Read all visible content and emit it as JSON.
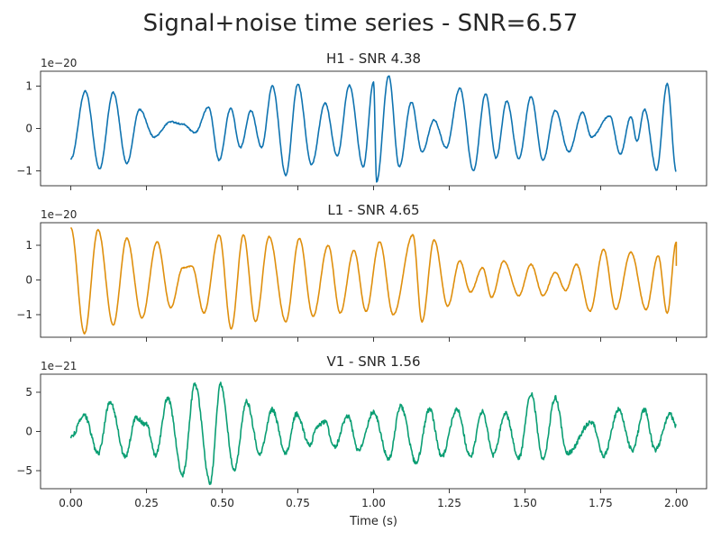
{
  "figure": {
    "title": "Signal+noise time series - SNR=6.57"
  },
  "colors": {
    "H1": "#0f73b0",
    "L1": "#df8f0d",
    "V1": "#0a9e73"
  },
  "chart_data": [
    {
      "type": "line",
      "title": "H1 - SNR 4.38",
      "detector": "H1",
      "color": "#0f73b0",
      "offset_label": "1e−20",
      "xlabel": "",
      "xlim": [
        -0.1,
        2.1
      ],
      "ylim": [
        -1.35,
        1.35
      ],
      "x_ticks": [
        0,
        0.25,
        0.5,
        0.75,
        1.0,
        1.25,
        1.5,
        1.75,
        2.0
      ],
      "x_tick_labels": [
        "",
        "",
        "",
        "",
        "",
        "",
        "",
        "",
        ""
      ],
      "y_ticks": [
        -1,
        0,
        1
      ],
      "y_tick_labels": [
        "−1",
        "0",
        "1"
      ],
      "extrema": [
        [
          0.0,
          -0.72
        ],
        [
          0.048,
          0.88
        ],
        [
          0.095,
          -0.95
        ],
        [
          0.14,
          0.85
        ],
        [
          0.185,
          -0.82
        ],
        [
          0.227,
          0.45
        ],
        [
          0.275,
          -0.2
        ],
        [
          0.33,
          0.16
        ],
        [
          0.37,
          0.1
        ],
        [
          0.41,
          -0.1
        ],
        [
          0.455,
          0.5
        ],
        [
          0.49,
          -0.75
        ],
        [
          0.528,
          0.48
        ],
        [
          0.56,
          -0.45
        ],
        [
          0.595,
          0.42
        ],
        [
          0.63,
          -0.45
        ],
        [
          0.666,
          1.0
        ],
        [
          0.71,
          -1.1
        ],
        [
          0.75,
          1.05
        ],
        [
          0.795,
          -0.85
        ],
        [
          0.84,
          0.6
        ],
        [
          0.88,
          -0.65
        ],
        [
          0.92,
          1.02
        ],
        [
          0.966,
          -0.9
        ],
        [
          1.0,
          1.1
        ],
        [
          1.01,
          -1.25
        ],
        [
          1.05,
          1.25
        ],
        [
          1.085,
          -0.9
        ],
        [
          1.125,
          0.62
        ],
        [
          1.16,
          -0.55
        ],
        [
          1.2,
          0.2
        ],
        [
          1.24,
          -0.45
        ],
        [
          1.285,
          0.95
        ],
        [
          1.33,
          -1.0
        ],
        [
          1.37,
          0.82
        ],
        [
          1.405,
          -0.7
        ],
        [
          1.44,
          0.65
        ],
        [
          1.48,
          -0.72
        ],
        [
          1.52,
          0.75
        ],
        [
          1.56,
          -0.75
        ],
        [
          1.6,
          0.43
        ],
        [
          1.645,
          -0.55
        ],
        [
          1.69,
          0.38
        ],
        [
          1.72,
          -0.2
        ],
        [
          1.78,
          0.3
        ],
        [
          1.815,
          -0.6
        ],
        [
          1.85,
          0.28
        ],
        [
          1.87,
          -0.3
        ],
        [
          1.895,
          0.45
        ],
        [
          1.935,
          -0.98
        ],
        [
          1.97,
          1.05
        ],
        [
          2.0,
          -1.02
        ]
      ],
      "noise_amplitude": 0.015
    },
    {
      "type": "line",
      "title": "L1 - SNR 4.65",
      "detector": "L1",
      "color": "#df8f0d",
      "offset_label": "1e−20",
      "xlabel": "",
      "xlim": [
        -0.1,
        2.1
      ],
      "ylim": [
        -1.65,
        1.65
      ],
      "x_ticks": [
        0,
        0.25,
        0.5,
        0.75,
        1.0,
        1.25,
        1.5,
        1.75,
        2.0
      ],
      "x_tick_labels": [
        "",
        "",
        "",
        "",
        "",
        "",
        "",
        "",
        ""
      ],
      "y_ticks": [
        -1,
        0,
        1
      ],
      "y_tick_labels": [
        "−1",
        "0",
        "1"
      ],
      "extrema": [
        [
          0.0,
          1.5
        ],
        [
          0.045,
          -1.55
        ],
        [
          0.09,
          1.45
        ],
        [
          0.14,
          -1.3
        ],
        [
          0.185,
          1.2
        ],
        [
          0.235,
          -1.1
        ],
        [
          0.285,
          1.1
        ],
        [
          0.33,
          -0.8
        ],
        [
          0.37,
          0.35
        ],
        [
          0.4,
          0.4
        ],
        [
          0.44,
          -0.95
        ],
        [
          0.49,
          1.3
        ],
        [
          0.53,
          -1.4
        ],
        [
          0.57,
          1.3
        ],
        [
          0.61,
          -1.2
        ],
        [
          0.655,
          1.25
        ],
        [
          0.71,
          -1.2
        ],
        [
          0.755,
          1.2
        ],
        [
          0.8,
          -1.05
        ],
        [
          0.85,
          1.0
        ],
        [
          0.89,
          -0.95
        ],
        [
          0.935,
          0.85
        ],
        [
          0.975,
          -0.9
        ],
        [
          1.02,
          1.1
        ],
        [
          1.065,
          -1.0
        ],
        [
          1.13,
          1.3
        ],
        [
          1.16,
          -1.2
        ],
        [
          1.2,
          1.15
        ],
        [
          1.245,
          -0.75
        ],
        [
          1.285,
          0.55
        ],
        [
          1.32,
          -0.35
        ],
        [
          1.36,
          0.35
        ],
        [
          1.39,
          -0.5
        ],
        [
          1.43,
          0.55
        ],
        [
          1.48,
          -0.45
        ],
        [
          1.52,
          0.45
        ],
        [
          1.56,
          -0.45
        ],
        [
          1.6,
          0.22
        ],
        [
          1.635,
          -0.3
        ],
        [
          1.67,
          0.45
        ],
        [
          1.715,
          -0.9
        ],
        [
          1.76,
          0.88
        ],
        [
          1.8,
          -0.85
        ],
        [
          1.85,
          0.8
        ],
        [
          1.9,
          -0.85
        ],
        [
          1.94,
          0.7
        ],
        [
          1.97,
          -0.95
        ],
        [
          2.0,
          1.1
        ],
        [
          2.0,
          0.42
        ]
      ],
      "noise_amplitude": 0.015
    },
    {
      "type": "line",
      "title": "V1 - SNR 1.56",
      "detector": "V1",
      "color": "#0a9e73",
      "offset_label": "1e−21",
      "xlabel": "Time (s)",
      "xlim": [
        -0.1,
        2.1
      ],
      "ylim": [
        -7.3,
        7.3
      ],
      "x_ticks": [
        0,
        0.25,
        0.5,
        0.75,
        1.0,
        1.25,
        1.5,
        1.75,
        2.0
      ],
      "x_tick_labels": [
        "0.00",
        "0.25",
        "0.50",
        "0.75",
        "1.00",
        "1.25",
        "1.50",
        "1.75",
        "2.00"
      ],
      "y_ticks": [
        -5,
        0,
        5
      ],
      "y_tick_labels": [
        "−5",
        "0",
        "5"
      ],
      "extrema": [
        [
          0.0,
          -0.7
        ],
        [
          0.045,
          2.0
        ],
        [
          0.09,
          -2.8
        ],
        [
          0.13,
          3.8
        ],
        [
          0.18,
          -3.2
        ],
        [
          0.215,
          1.7
        ],
        [
          0.25,
          0.9
        ],
        [
          0.28,
          -3.0
        ],
        [
          0.32,
          4.2
        ],
        [
          0.37,
          -5.5
        ],
        [
          0.41,
          6.0
        ],
        [
          0.46,
          -6.5
        ],
        [
          0.495,
          6.0
        ],
        [
          0.54,
          -5.0
        ],
        [
          0.58,
          3.8
        ],
        [
          0.625,
          -2.8
        ],
        [
          0.665,
          2.8
        ],
        [
          0.71,
          -2.8
        ],
        [
          0.745,
          2.2
        ],
        [
          0.79,
          -1.8
        ],
        [
          0.81,
          0.5
        ],
        [
          0.84,
          1.2
        ],
        [
          0.87,
          -2.0
        ],
        [
          0.915,
          2.0
        ],
        [
          0.95,
          -2.5
        ],
        [
          1.0,
          2.5
        ],
        [
          1.05,
          -3.5
        ],
        [
          1.09,
          3.2
        ],
        [
          1.14,
          -4.0
        ],
        [
          1.185,
          2.8
        ],
        [
          1.225,
          -3.2
        ],
        [
          1.275,
          2.8
        ],
        [
          1.32,
          -3.2
        ],
        [
          1.36,
          2.5
        ],
        [
          1.395,
          -3.0
        ],
        [
          1.435,
          2.3
        ],
        [
          1.48,
          -3.4
        ],
        [
          1.52,
          4.8
        ],
        [
          1.56,
          -3.5
        ],
        [
          1.6,
          4.3
        ],
        [
          1.64,
          -2.8
        ],
        [
          1.72,
          1.2
        ],
        [
          1.76,
          -3.1
        ],
        [
          1.81,
          2.8
        ],
        [
          1.855,
          -2.4
        ],
        [
          1.895,
          2.8
        ],
        [
          1.93,
          -2.4
        ],
        [
          1.98,
          2.2
        ],
        [
          2.0,
          0.6
        ]
      ],
      "noise_amplitude": 0.3
    }
  ]
}
